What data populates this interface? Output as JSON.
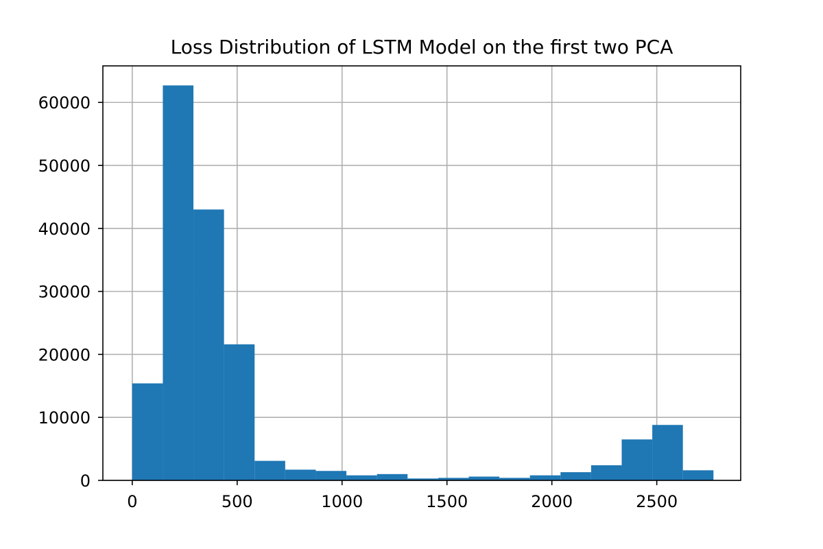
{
  "chart_data": {
    "type": "bar",
    "title": "Loss Distribution of LSTM Model on the first two PCA",
    "xlabel": "",
    "ylabel": "",
    "bin_edges": [
      0,
      145.8,
      291.6,
      437.4,
      583.2,
      729.0,
      874.8,
      1020.6,
      1166.4,
      1312.2,
      1458.0,
      1603.8,
      1749.6,
      1895.4,
      2041.2,
      2187.0,
      2332.8,
      2478.6,
      2624.4,
      2770.2
    ],
    "values": [
      15400,
      62700,
      43000,
      21600,
      3100,
      1700,
      1500,
      800,
      1000,
      300,
      400,
      600,
      400,
      800,
      1300,
      2400,
      6500,
      8800,
      1600
    ],
    "xlim": [
      -140,
      2900
    ],
    "ylim": [
      0,
      65800
    ],
    "xticks": [
      0,
      500,
      1000,
      1500,
      2000,
      2500
    ],
    "xtick_labels": [
      "0",
      "500",
      "1000",
      "1500",
      "2000",
      "2500"
    ],
    "yticks": [
      0,
      10000,
      20000,
      30000,
      40000,
      50000,
      60000
    ],
    "ytick_labels": [
      "0",
      "10000",
      "20000",
      "30000",
      "40000",
      "50000",
      "60000"
    ],
    "grid": true,
    "bar_color": "#1f77b4",
    "grid_color": "#b0b0b0"
  }
}
